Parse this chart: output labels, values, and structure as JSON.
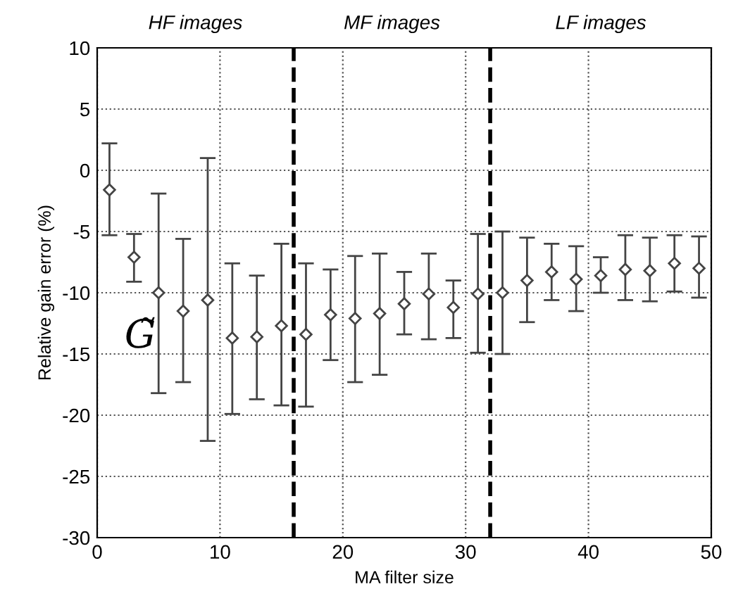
{
  "chart_data": {
    "type": "scatter",
    "xlabel": "MA filter size",
    "ylabel": "Relative gain error (%)",
    "x": [
      1,
      3,
      5,
      7,
      9,
      11,
      13,
      15,
      17,
      19,
      21,
      23,
      25,
      27,
      29,
      31,
      33,
      35,
      37,
      39,
      41,
      43,
      45,
      47,
      49
    ],
    "series": [
      {
        "color": "#444444",
        "values": [
          -1.6,
          -7.1,
          -10.0,
          -11.5,
          -10.6,
          -13.7,
          -13.6,
          -12.7,
          -13.4,
          -11.8,
          -12.1,
          -11.7,
          -10.9,
          -10.1,
          -11.2,
          -10.1,
          -10.0,
          -9.0,
          -8.3,
          -8.9,
          -8.6,
          -8.1,
          -8.2,
          -7.6,
          -8.0
        ],
        "errors": [
          [
            -5.3,
            2.2
          ],
          [
            -9.1,
            -5.2
          ],
          [
            -18.2,
            -1.9
          ],
          [
            -17.3,
            -5.6
          ],
          [
            -22.1,
            1.0
          ],
          [
            -19.9,
            -7.6
          ],
          [
            -18.7,
            -8.6
          ],
          [
            -19.2,
            -6.0
          ],
          [
            -19.3,
            -7.6
          ],
          [
            -15.5,
            -8.1
          ],
          [
            -17.3,
            -7.0
          ],
          [
            -16.7,
            -6.8
          ],
          [
            -13.4,
            -8.3
          ],
          [
            -13.8,
            -6.8
          ],
          [
            -13.7,
            -9.0
          ],
          [
            -14.9,
            -5.2
          ],
          [
            -15.0,
            -5.0
          ],
          [
            -12.4,
            -5.5
          ],
          [
            -10.6,
            -6.0
          ],
          [
            -11.5,
            -6.2
          ],
          [
            -10.0,
            -7.1
          ],
          [
            -10.6,
            -5.3
          ],
          [
            -10.7,
            -5.5
          ],
          [
            -9.9,
            -5.3
          ],
          [
            -10.4,
            -5.4
          ]
        ]
      }
    ],
    "marker": "diamond",
    "xlim": [
      0,
      50
    ],
    "xticks": [
      0,
      10,
      20,
      30,
      40,
      50
    ],
    "ylim": [
      -30,
      10
    ],
    "yticks": [
      -30,
      -25,
      -20,
      -15,
      -10,
      -5,
      0,
      5,
      10
    ],
    "grid": true,
    "legend": false,
    "ref_lines": [
      {
        "axis": "x",
        "value": 16,
        "color": "#000000",
        "line_style": "dashed"
      },
      {
        "axis": "x",
        "value": 32,
        "color": "#000000",
        "line_style": "dashed"
      }
    ],
    "annotations": [
      "HF images",
      "MF images",
      "LF images",
      "G̃"
    ]
  }
}
